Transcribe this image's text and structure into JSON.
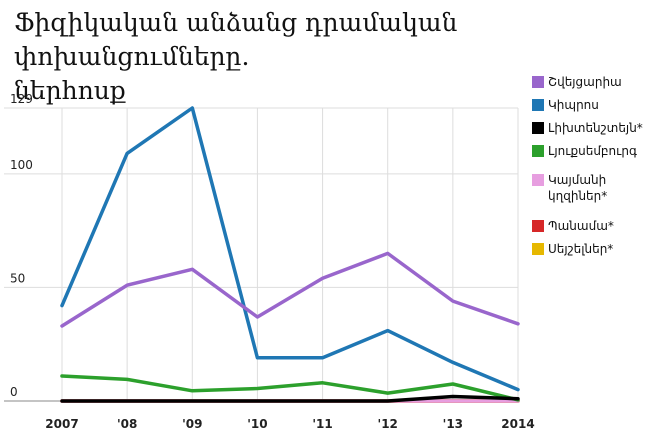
{
  "title_lines": [
    "Ֆիզիկական անձանց դրամական փոխանցումները.",
    "ներհոսք"
  ],
  "chart_data": {
    "type": "line",
    "categories": [
      "2007",
      "'08",
      "'09",
      "'10",
      "'11",
      "'12",
      "'13",
      "2014"
    ],
    "yticks": [
      "0",
      "50",
      "100",
      "129"
    ],
    "ylim": [
      0,
      129
    ],
    "grid": true,
    "legend_position": "right",
    "series": [
      {
        "name": "Շվեյցարիա",
        "color": "#9966cc",
        "values": [
          33,
          51,
          58,
          37,
          54,
          65,
          44,
          34
        ]
      },
      {
        "name": "Կիպրոս",
        "color": "#1f77b4",
        "values": [
          42,
          109,
          129,
          19,
          19,
          31,
          17,
          5
        ]
      },
      {
        "name": "Լիխտենշտեյն*",
        "color": "#000000",
        "values": [
          0,
          0,
          0,
          0,
          0,
          0,
          2,
          1
        ]
      },
      {
        "name": "Լյուքսեմբուրգ",
        "color": "#2ca02c",
        "values": [
          11,
          9.5,
          4.5,
          5.5,
          8,
          3.5,
          7.5,
          0.5
        ]
      },
      {
        "name": "Կայմանի կղզիներ*",
        "color": "#e79ee0",
        "values": [
          0,
          0,
          0,
          0,
          0,
          0,
          0,
          0
        ]
      },
      {
        "name": "Պանամա*",
        "color": "#d62728",
        "values": [
          0,
          0,
          0,
          0,
          0,
          0,
          0,
          0
        ]
      },
      {
        "name": "Սեյշելներ*",
        "color": "#e6b800",
        "values": [
          0,
          0,
          0,
          0,
          0,
          0,
          0,
          0
        ]
      }
    ]
  }
}
